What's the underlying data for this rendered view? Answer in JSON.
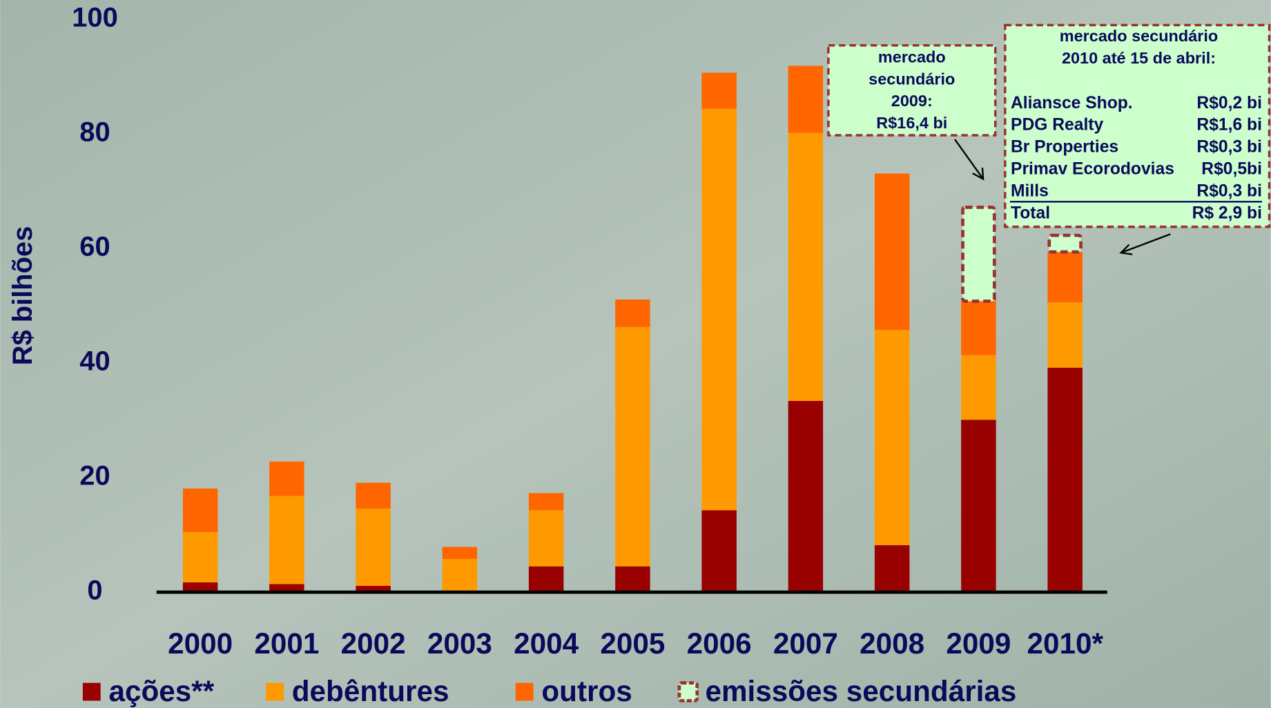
{
  "chart_data": {
    "type": "bar",
    "stacked": true,
    "ylabel": "R$ bilhões",
    "categories": [
      "2000",
      "2001",
      "2002",
      "2003",
      "2004",
      "2005",
      "2006",
      "2007",
      "2008",
      "2009",
      "2010*"
    ],
    "series": [
      {
        "name": "ações**",
        "color": "#990000",
        "values": [
          1.7,
          1.4,
          1.1,
          0,
          4.5,
          4.5,
          14.3,
          33.4,
          8.2,
          30.1,
          39.2
        ]
      },
      {
        "name": "debêntures",
        "color": "#ff9900",
        "values": [
          8.8,
          15.4,
          13.5,
          5.8,
          9.8,
          41.8,
          70.1,
          46.8,
          37.6,
          11.3,
          11.4
        ]
      },
      {
        "name": "outros",
        "color": "#ff6600",
        "values": [
          7.6,
          6.0,
          4.5,
          2.1,
          3.0,
          4.8,
          6.3,
          11.7,
          27.3,
          9.4,
          8.8
        ]
      },
      {
        "name": "emissões secundárias",
        "color": "#ccffcc",
        "border_color": "#993333",
        "dashed": true,
        "values": [
          null,
          null,
          null,
          null,
          null,
          null,
          null,
          null,
          null,
          16.4,
          2.9
        ]
      }
    ],
    "ylim": [
      0,
      100
    ],
    "yticks": [
      0,
      20,
      40,
      60,
      80,
      100
    ],
    "legend": "bottom",
    "annotations": [
      {
        "lines": [
          "mercado",
          "secundário",
          "2009:",
          "R$16,4 bi"
        ]
      },
      {
        "lines": [
          "mercado secundário",
          "2010 até 15 de abril:"
        ],
        "rows": [
          {
            "name": "Aliansce Shop.",
            "value": "R$0,2 bi"
          },
          {
            "name": "PDG Realty",
            "value": "R$1,6 bi"
          },
          {
            "name": "Br Properties",
            "value": "R$0,3 bi"
          },
          {
            "name": "Primav Ecorodovias",
            "value": "R$0,5bi"
          },
          {
            "name": "Mills",
            "value": "R$0,3 bi"
          },
          {
            "name": "Total",
            "value": "R$ 2,9 bi"
          }
        ]
      }
    ]
  }
}
